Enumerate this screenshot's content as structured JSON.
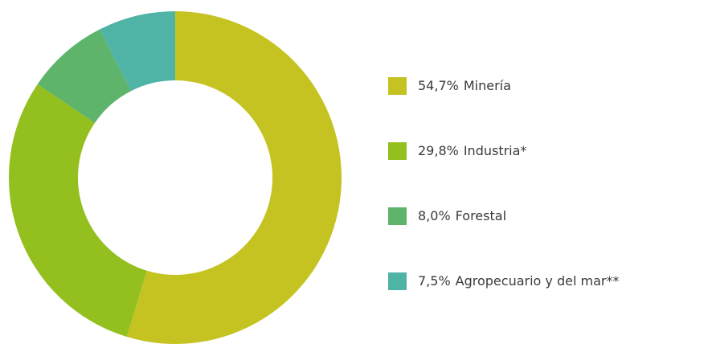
{
  "chart_data": {
    "type": "donut",
    "categories": [
      "Minería",
      "Industria*",
      "Forestal",
      "Agropecuario y del mar**"
    ],
    "values": [
      54.7,
      29.8,
      8.0,
      7.5
    ],
    "value_labels": [
      "54,7%",
      "29,8%",
      "8,0%",
      "7,5%"
    ],
    "colors": [
      "#c5c322",
      "#93bf1f",
      "#5db46a",
      "#4fb3a5"
    ],
    "legend": "right"
  }
}
